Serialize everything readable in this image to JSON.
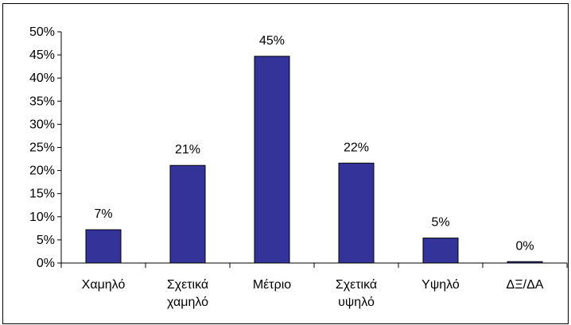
{
  "chart_data": {
    "type": "bar",
    "categories": [
      [
        "Χαμηλό"
      ],
      [
        "Σχετικά",
        "χαμηλό"
      ],
      [
        "Μέτριο"
      ],
      [
        "Σχετικά",
        "υψηλό"
      ],
      [
        "Υψηλό"
      ],
      [
        "ΔΞ/ΔΑ"
      ]
    ],
    "values": [
      7.2,
      21.1,
      44.7,
      21.6,
      5.4,
      0.3
    ],
    "data_labels": [
      "7%",
      "21%",
      "45%",
      "22%",
      "5%",
      "0%"
    ],
    "ylim": [
      0,
      50
    ],
    "yticks": [
      0,
      5,
      10,
      15,
      20,
      25,
      30,
      35,
      40,
      45,
      50
    ],
    "ytick_labels": [
      "0%",
      "5%",
      "10%",
      "15%",
      "20%",
      "25%",
      "30%",
      "35%",
      "40%",
      "45%",
      "50%"
    ],
    "title": "",
    "xlabel": "",
    "ylabel": "",
    "grid": false,
    "legend": "none",
    "bar_color": "#333399"
  }
}
